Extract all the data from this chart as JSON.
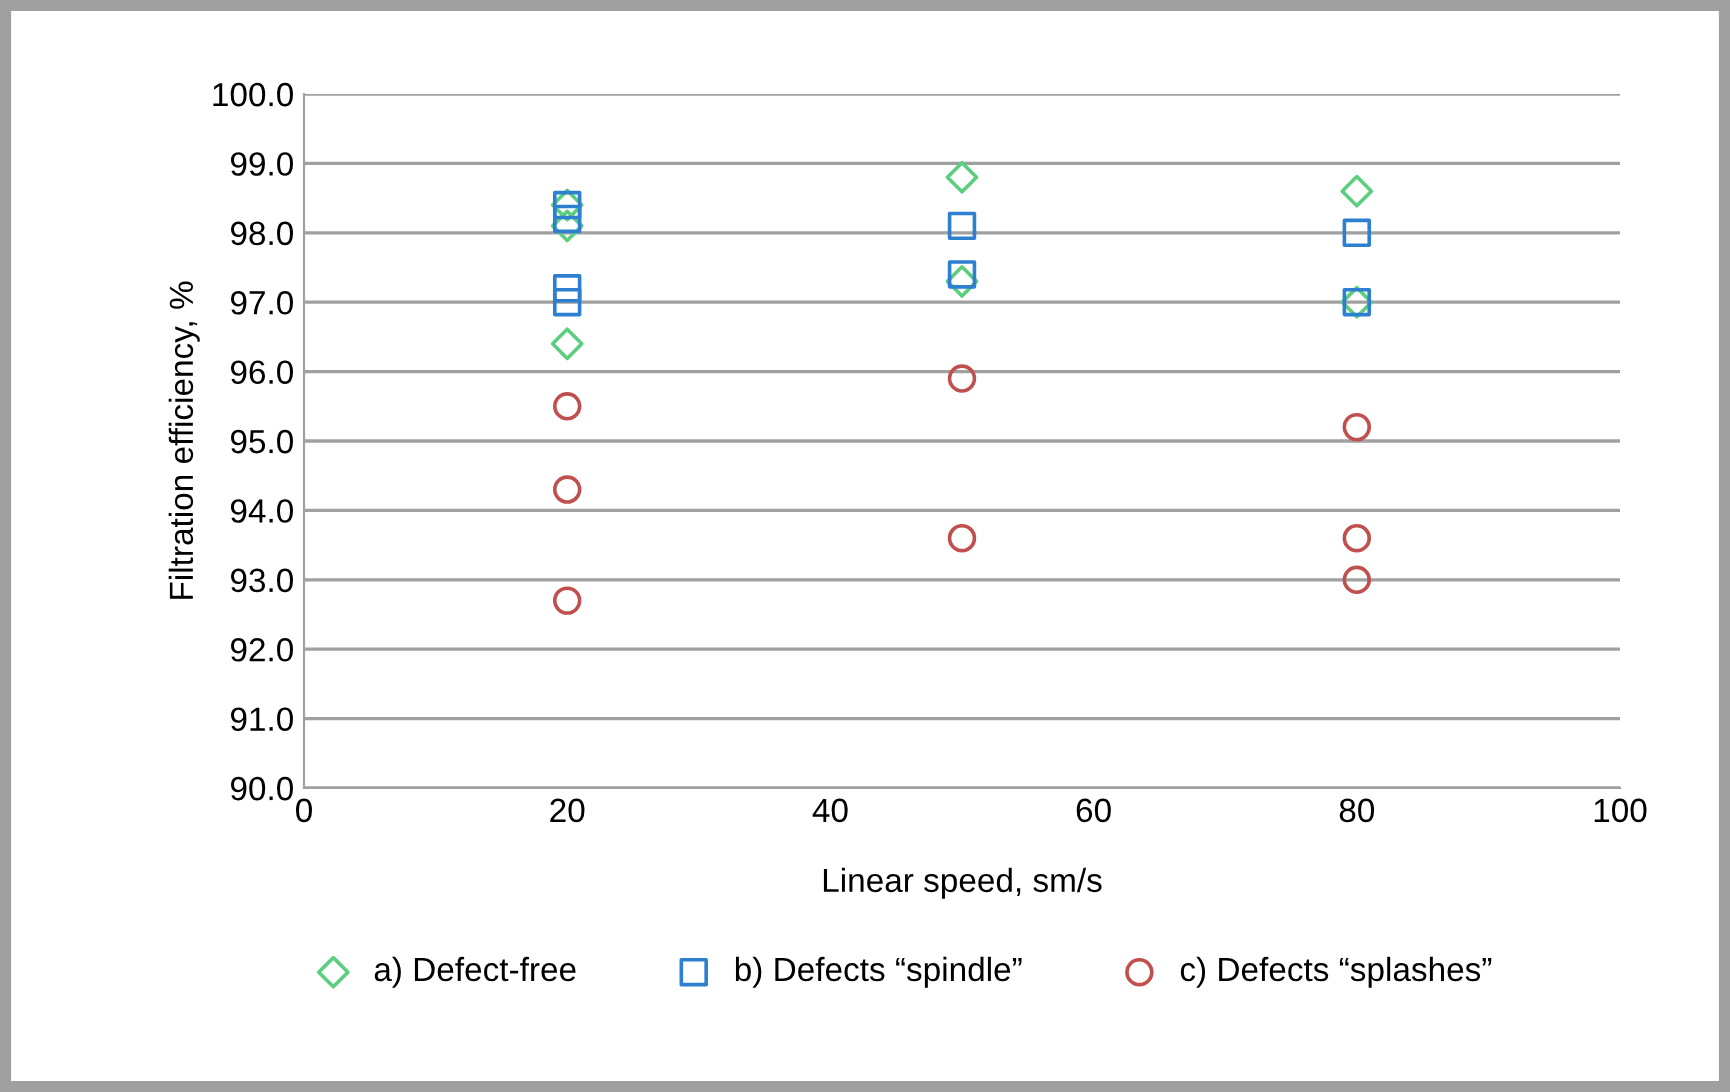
{
  "chart_data": {
    "type": "scatter",
    "xlabel": "Linear speed, sm/s",
    "ylabel": "Filtration efficiency, %",
    "xlim": [
      0,
      100
    ],
    "xticks": [
      0,
      20,
      40,
      60,
      80,
      100
    ],
    "ylim": [
      90,
      100
    ],
    "yticks": [
      {
        "value": 90,
        "label": "90.0"
      },
      {
        "value": 91,
        "label": "91.0"
      },
      {
        "value": 92,
        "label": "92.0"
      },
      {
        "value": 93,
        "label": "93.0"
      },
      {
        "value": 94,
        "label": "94.0"
      },
      {
        "value": 95,
        "label": "95.0"
      },
      {
        "value": 96,
        "label": "96.0"
      },
      {
        "value": 97,
        "label": "97.0"
      },
      {
        "value": 98,
        "label": "98.0"
      },
      {
        "value": 99,
        "label": "99.0"
      },
      {
        "value": 100,
        "label": "100.0"
      }
    ],
    "grid": "y",
    "legend": "bottom",
    "series": [
      {
        "name": "a) Defect-free",
        "color": "#5ccf7f",
        "marker": "diamond",
        "x": [
          20,
          20,
          20,
          50,
          50,
          80,
          80
        ],
        "values": [
          98.4,
          98.1,
          96.4,
          98.8,
          97.3,
          98.6,
          97.0
        ]
      },
      {
        "name": "b) Defects “spindle”",
        "color": "#2e7fd0",
        "marker": "square",
        "x": [
          20,
          20,
          20,
          20,
          50,
          50,
          80,
          80
        ],
        "values": [
          98.4,
          98.2,
          97.2,
          97.0,
          98.1,
          97.4,
          98.0,
          97.0
        ]
      },
      {
        "name": "c) Defects “splashes”",
        "color": "#c0504d",
        "marker": "circle",
        "x": [
          20,
          20,
          20,
          50,
          50,
          80,
          80,
          80
        ],
        "values": [
          95.5,
          94.3,
          92.7,
          95.9,
          93.6,
          95.2,
          93.6,
          93.0
        ]
      }
    ]
  }
}
